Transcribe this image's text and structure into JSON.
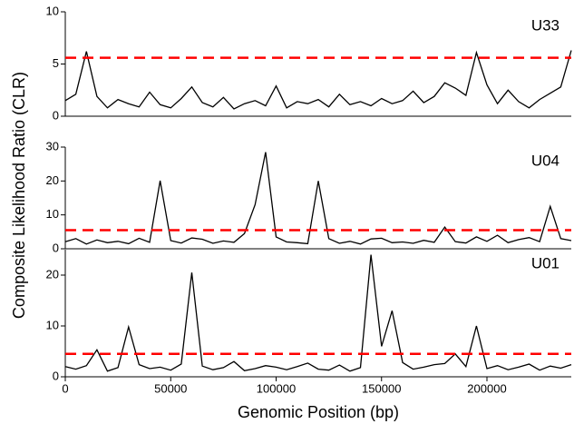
{
  "chart_data": [
    {
      "type": "line",
      "label": "U33",
      "color": "#000000",
      "threshold": 5.6,
      "threshold_color": "#ff0000",
      "x": [
        0,
        5000,
        10000,
        15000,
        20000,
        25000,
        30000,
        35000,
        40000,
        45000,
        50000,
        55000,
        60000,
        65000,
        70000,
        75000,
        80000,
        85000,
        90000,
        95000,
        100000,
        105000,
        110000,
        115000,
        120000,
        125000,
        130000,
        135000,
        140000,
        145000,
        150000,
        155000,
        160000,
        165000,
        170000,
        175000,
        180000,
        185000,
        190000,
        195000,
        200000,
        205000,
        210000,
        215000,
        220000,
        225000,
        230000,
        235000,
        240000
      ],
      "values": [
        1.5,
        2.1,
        6.2,
        1.9,
        0.8,
        1.6,
        1.2,
        0.9,
        2.3,
        1.1,
        0.8,
        1.7,
        2.8,
        1.3,
        0.9,
        1.8,
        0.7,
        1.2,
        1.5,
        1.0,
        2.9,
        0.8,
        1.4,
        1.2,
        1.6,
        0.9,
        2.1,
        1.1,
        1.4,
        1.0,
        1.7,
        1.2,
        1.5,
        2.4,
        1.3,
        1.9,
        3.2,
        2.7,
        2.0,
        6.1,
        3.0,
        1.2,
        2.5,
        1.4,
        0.8,
        1.6,
        2.2,
        2.8,
        6.3
      ],
      "xlim": [
        0,
        240000
      ],
      "ylim": [
        0,
        10
      ],
      "yticks": [
        0,
        5,
        10
      ]
    },
    {
      "type": "line",
      "label": "U04",
      "color": "#000000",
      "threshold": 5.5,
      "threshold_color": "#ff0000",
      "x": [
        0,
        5000,
        10000,
        15000,
        20000,
        25000,
        30000,
        35000,
        40000,
        45000,
        50000,
        55000,
        60000,
        65000,
        70000,
        75000,
        80000,
        85000,
        90000,
        95000,
        100000,
        105000,
        110000,
        115000,
        120000,
        125000,
        130000,
        135000,
        140000,
        145000,
        150000,
        155000,
        160000,
        165000,
        170000,
        175000,
        180000,
        185000,
        190000,
        195000,
        200000,
        205000,
        210000,
        215000,
        220000,
        225000,
        230000,
        235000,
        240000
      ],
      "values": [
        2.1,
        3.0,
        1.4,
        2.6,
        1.8,
        2.2,
        1.5,
        3.1,
        1.9,
        20.1,
        2.4,
        1.7,
        3.2,
        2.8,
        1.6,
        2.3,
        1.9,
        4.5,
        13.0,
        28.5,
        3.5,
        2.0,
        1.8,
        1.5,
        20.0,
        3.0,
        1.6,
        2.2,
        1.4,
        2.9,
        3.1,
        1.8,
        2.0,
        1.6,
        2.5,
        1.9,
        6.4,
        2.1,
        1.7,
        3.5,
        2.2,
        4.0,
        1.8,
        2.7,
        3.3,
        2.1,
        12.5,
        3.0,
        2.4
      ],
      "xlim": [
        0,
        240000
      ],
      "ylim": [
        0,
        30
      ],
      "yticks": [
        0,
        10,
        20,
        30
      ]
    },
    {
      "type": "line",
      "label": "U01",
      "color": "#000000",
      "threshold": 4.5,
      "threshold_color": "#ff0000",
      "x": [
        0,
        5000,
        10000,
        15000,
        20000,
        25000,
        30000,
        35000,
        40000,
        45000,
        50000,
        55000,
        60000,
        65000,
        70000,
        75000,
        80000,
        85000,
        90000,
        95000,
        100000,
        105000,
        110000,
        115000,
        120000,
        125000,
        130000,
        135000,
        140000,
        145000,
        150000,
        155000,
        160000,
        165000,
        170000,
        175000,
        180000,
        185000,
        190000,
        195000,
        200000,
        205000,
        210000,
        215000,
        220000,
        225000,
        230000,
        235000,
        240000
      ],
      "values": [
        2.0,
        1.5,
        2.2,
        5.3,
        1.1,
        1.8,
        9.8,
        2.4,
        1.6,
        1.9,
        1.3,
        2.5,
        20.5,
        2.1,
        1.4,
        1.8,
        3.0,
        1.2,
        1.6,
        2.2,
        1.9,
        1.4,
        2.0,
        2.7,
        1.5,
        1.3,
        2.3,
        1.1,
        1.8,
        24.0,
        6.0,
        13.0,
        2.8,
        1.5,
        1.9,
        2.4,
        2.6,
        4.5,
        2.0,
        10.0,
        1.6,
        2.2,
        1.4,
        1.9,
        2.5,
        1.3,
        2.1,
        1.7,
        2.4
      ],
      "xlim": [
        0,
        240000
      ],
      "ylim": [
        0,
        25
      ],
      "yticks": [
        0,
        10,
        20
      ],
      "xticks": [
        0,
        50000,
        100000,
        150000,
        200000
      ]
    }
  ],
  "axis_labels": {
    "y": "Composite Likelihood Ratio (CLR)",
    "x": "Genomic Position (bp)"
  }
}
